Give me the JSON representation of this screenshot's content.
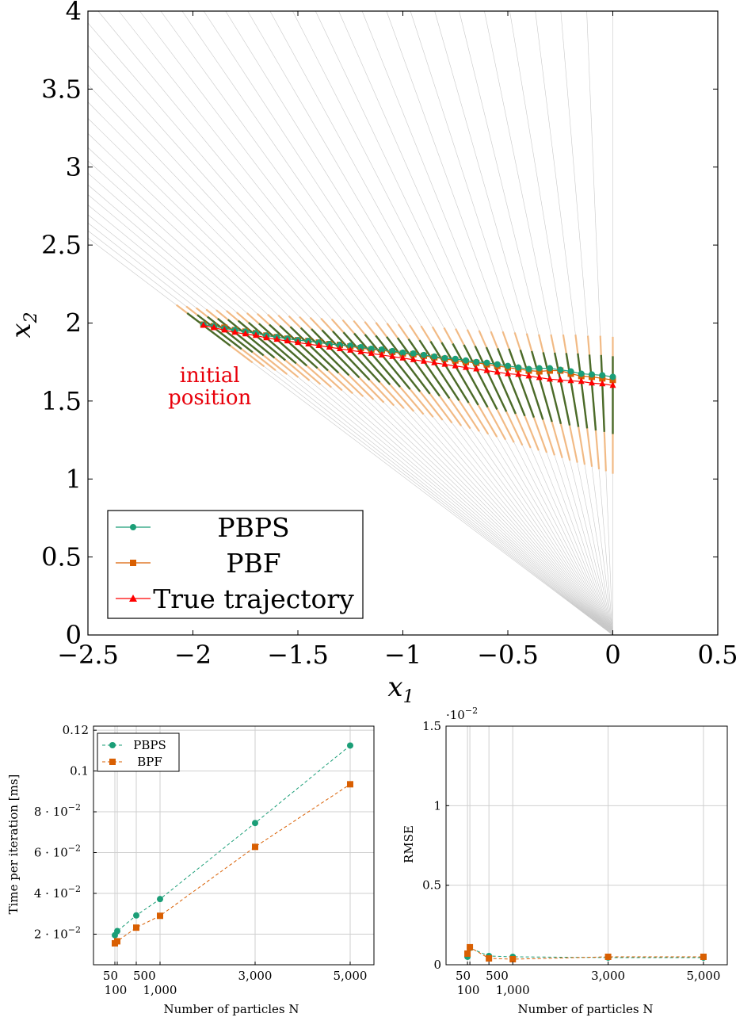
{
  "chart_data": [
    {
      "type": "line",
      "title": "",
      "xlabel": "x_1",
      "ylabel": "x_2",
      "xlim": [
        -2.5,
        0.5
      ],
      "ylim": [
        0,
        4
      ],
      "xticks": [
        "−2.5",
        "−2",
        "−1.5",
        "−1",
        "−0.5",
        "0",
        "0.5"
      ],
      "yticks": [
        "0",
        "0.5",
        "1",
        "1.5",
        "2",
        "2.5",
        "3",
        "3.5",
        "4"
      ],
      "xtick_values": [
        -2.5,
        -2,
        -1.5,
        -1,
        -0.5,
        0,
        0.5
      ],
      "ytick_values": [
        0,
        0.5,
        1,
        1.5,
        2,
        2.5,
        3,
        3.5,
        4
      ],
      "grid": false,
      "legend_position": "bottom-left",
      "annotation": {
        "lines": [
          "initial",
          "position"
        ],
        "x": -1.92,
        "y": 1.6
      },
      "series": [
        {
          "name": "PBPS",
          "color": "#1b9e77",
          "marker": "circle",
          "x": [
            -1.95,
            -1.9,
            -1.85,
            -1.8,
            -1.75,
            -1.7,
            -1.65,
            -1.6,
            -1.55,
            -1.5,
            -1.45,
            -1.4,
            -1.35,
            -1.3,
            -1.25,
            -1.2,
            -1.15,
            -1.1,
            -1.05,
            -1.0,
            -0.95,
            -0.9,
            -0.85,
            -0.8,
            -0.75,
            -0.7,
            -0.65,
            -0.6,
            -0.55,
            -0.5,
            -0.45,
            -0.4,
            -0.35,
            -0.3,
            -0.25,
            -0.2,
            -0.15,
            -0.1,
            -0.05,
            0.0
          ],
          "y": [
            1.99,
            1.98,
            1.965,
            1.955,
            1.945,
            1.935,
            1.92,
            1.91,
            1.9,
            1.89,
            1.885,
            1.875,
            1.865,
            1.86,
            1.855,
            1.845,
            1.835,
            1.83,
            1.82,
            1.81,
            1.805,
            1.795,
            1.785,
            1.775,
            1.77,
            1.76,
            1.75,
            1.745,
            1.735,
            1.725,
            1.715,
            1.705,
            1.71,
            1.71,
            1.7,
            1.69,
            1.675,
            1.67,
            1.665,
            1.655
          ]
        },
        {
          "name": "PBF",
          "color": "#d95f02",
          "marker": "square",
          "x": [
            -1.95,
            -1.9,
            -1.85,
            -1.8,
            -1.75,
            -1.7,
            -1.65,
            -1.6,
            -1.55,
            -1.5,
            -1.45,
            -1.4,
            -1.35,
            -1.3,
            -1.25,
            -1.2,
            -1.15,
            -1.1,
            -1.05,
            -1.0,
            -0.95,
            -0.9,
            -0.85,
            -0.8,
            -0.75,
            -0.7,
            -0.65,
            -0.6,
            -0.55,
            -0.5,
            -0.45,
            -0.4,
            -0.35,
            -0.3,
            -0.25,
            -0.2,
            -0.15,
            -0.1,
            -0.05,
            0.0
          ],
          "y": [
            1.99,
            1.98,
            1.97,
            1.955,
            1.945,
            1.935,
            1.92,
            1.91,
            1.9,
            1.89,
            1.885,
            1.875,
            1.865,
            1.86,
            1.85,
            1.84,
            1.83,
            1.825,
            1.815,
            1.805,
            1.8,
            1.79,
            1.78,
            1.77,
            1.76,
            1.75,
            1.745,
            1.735,
            1.725,
            1.715,
            1.705,
            1.695,
            1.69,
            1.695,
            1.695,
            1.675,
            1.66,
            1.655,
            1.645,
            1.635
          ]
        },
        {
          "name": "True trajectory",
          "color": "#ff0000",
          "marker": "triangle",
          "x": [
            -1.95,
            -1.9,
            -1.85,
            -1.8,
            -1.75,
            -1.7,
            -1.65,
            -1.6,
            -1.55,
            -1.5,
            -1.45,
            -1.4,
            -1.35,
            -1.3,
            -1.25,
            -1.2,
            -1.15,
            -1.1,
            -1.05,
            -1.0,
            -0.95,
            -0.9,
            -0.85,
            -0.8,
            -0.75,
            -0.7,
            -0.65,
            -0.6,
            -0.55,
            -0.5,
            -0.45,
            -0.4,
            -0.35,
            -0.3,
            -0.25,
            -0.2,
            -0.15,
            -0.1,
            -0.05,
            0.0
          ],
          "y": [
            1.985,
            1.97,
            1.955,
            1.94,
            1.93,
            1.92,
            1.905,
            1.895,
            1.885,
            1.875,
            1.865,
            1.855,
            1.845,
            1.835,
            1.825,
            1.815,
            1.805,
            1.795,
            1.785,
            1.775,
            1.765,
            1.755,
            1.745,
            1.735,
            1.725,
            1.715,
            1.705,
            1.695,
            1.685,
            1.675,
            1.67,
            1.66,
            1.65,
            1.64,
            1.635,
            1.63,
            1.625,
            1.615,
            1.61,
            1.6
          ]
        }
      ]
    },
    {
      "type": "line",
      "title": "",
      "xlabel": "Number of particles N",
      "ylabel": "Time per iteration [ms]",
      "xlim": [
        -400,
        5500
      ],
      "ylim": [
        0.005,
        0.122
      ],
      "xticks_top_row": [
        "50",
        "500",
        "3,000",
        "5,000"
      ],
      "xticks_bottom_row": [
        "100",
        "1,000"
      ],
      "xtick_values": [
        50,
        100,
        500,
        1000,
        3000,
        5000
      ],
      "yticks": [
        "2 · 10",
        "4 · 10",
        "6 · 10",
        "8 · 10",
        "0.1",
        "0.12"
      ],
      "ytick_exponent": "−2",
      "ytick_values": [
        0.02,
        0.04,
        0.06,
        0.08,
        0.1,
        0.12
      ],
      "grid": true,
      "legend_position": "top-left",
      "series": [
        {
          "name": "PBPS",
          "color": "#1b9e77",
          "marker": "circle",
          "x": [
            50,
            100,
            500,
            1000,
            3000,
            5000
          ],
          "y": [
            0.0195,
            0.0215,
            0.0292,
            0.0372,
            0.0745,
            0.1125
          ]
        },
        {
          "name": "BPF",
          "color": "#d95f02",
          "marker": "square",
          "x": [
            50,
            100,
            500,
            1000,
            3000,
            5000
          ],
          "y": [
            0.0155,
            0.0165,
            0.0232,
            0.029,
            0.0628,
            0.0935
          ]
        }
      ]
    },
    {
      "type": "line",
      "title": "",
      "xlabel": "Number of particles N",
      "ylabel": "RMSE",
      "xlim": [
        -400,
        5500
      ],
      "ylim": [
        0,
        1.5
      ],
      "y_scale_label": "·10",
      "y_scale_exponent": "−2",
      "xticks_top_row": [
        "50",
        "500",
        "3,000",
        "5,000"
      ],
      "xticks_bottom_row": [
        "100",
        "1,000"
      ],
      "xtick_values": [
        50,
        100,
        500,
        1000,
        3000,
        5000
      ],
      "yticks": [
        "0",
        "0.5",
        "1",
        "1.5"
      ],
      "ytick_values": [
        0,
        0.5,
        1,
        1.5
      ],
      "grid": true,
      "series": [
        {
          "name": "PBPS",
          "color": "#1b9e77",
          "marker": "circle",
          "x": [
            50,
            100,
            500,
            1000,
            3000,
            5000
          ],
          "y": [
            0.05,
            0.105,
            0.055,
            0.05,
            0.045,
            0.045
          ]
        },
        {
          "name": "BPF",
          "color": "#d95f02",
          "marker": "square",
          "x": [
            50,
            100,
            500,
            1000,
            3000,
            5000
          ],
          "y": [
            0.07,
            0.11,
            0.04,
            0.035,
            0.05,
            0.05
          ]
        }
      ]
    }
  ]
}
